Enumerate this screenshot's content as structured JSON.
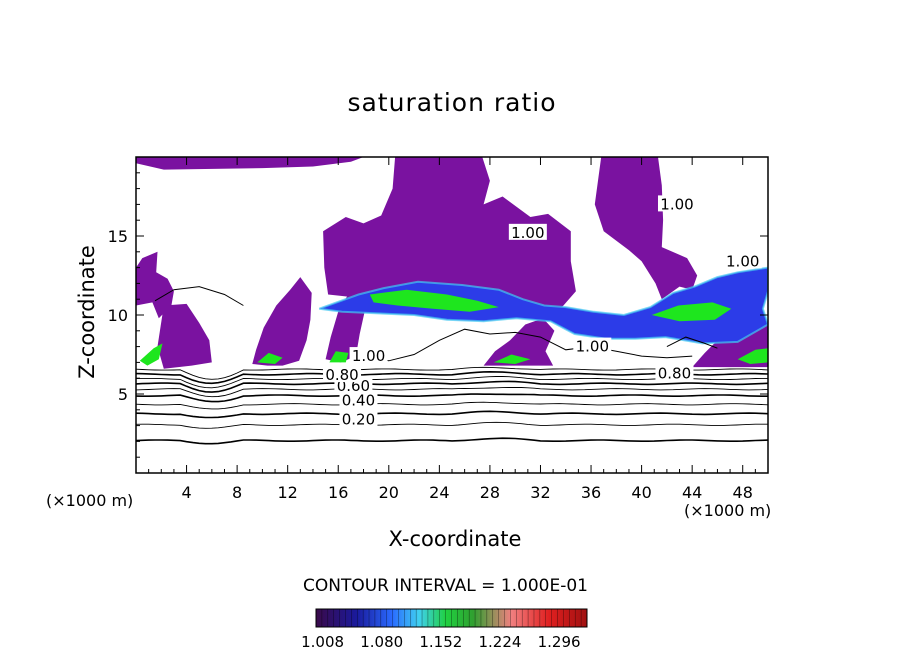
{
  "chart_data": {
    "type": "heatmap",
    "title": "saturation ratio",
    "xlabel": "X-coordinate",
    "ylabel": "Z-coordinate",
    "x_unit_label": "(×1000 m)",
    "xlim": [
      0,
      50
    ],
    "ylim": [
      0,
      20
    ],
    "x_ticks": [
      4,
      8,
      12,
      16,
      20,
      24,
      28,
      32,
      36,
      40,
      44,
      48
    ],
    "y_ticks": [
      5,
      10,
      15
    ],
    "contour_interval_text": "CONTOUR INTERVAL = 1.000E-01",
    "contour_labels": [
      {
        "text": "0.20",
        "x": 17.6,
        "z": 3.4
      },
      {
        "text": "0.40",
        "x": 17.6,
        "z": 4.6
      },
      {
        "text": "0.60",
        "x": 17.2,
        "z": 5.5
      },
      {
        "text": "0.80",
        "x": 16.3,
        "z": 6.2
      },
      {
        "text": "0.80",
        "x": 42.6,
        "z": 6.3
      },
      {
        "text": "1.00",
        "x": 18.4,
        "z": 7.4
      },
      {
        "text": "1.00",
        "x": 36.1,
        "z": 8.0
      },
      {
        "text": "1.00",
        "x": 31.0,
        "z": 15.2
      },
      {
        "text": "1.00",
        "x": 42.8,
        "z": 17.0
      },
      {
        "text": "1.00",
        "x": 48.0,
        "z": 13.4
      }
    ],
    "colorbar": {
      "ticks": [
        "1.008",
        "1.080",
        "1.152",
        "1.224",
        "1.296"
      ],
      "range": [
        1.0,
        1.33
      ]
    },
    "colors": {
      "supersaturated_base": "#7a12a0",
      "blue": "#2c3ce8",
      "cyan": "#42c8f2",
      "green": "#1ee61e",
      "contour_line": "#000000"
    },
    "regions": [
      {
        "name": "upper-left-lobe",
        "level": 1.0,
        "pts": [
          [
            0,
            20
          ],
          [
            0,
            19.6
          ],
          [
            2.2,
            19.2
          ],
          [
            10,
            19.3
          ],
          [
            14,
            19.4
          ],
          [
            17,
            19.7
          ],
          [
            18,
            20
          ]
        ]
      },
      {
        "name": "central-column",
        "level": 1.0,
        "pts": [
          [
            20.5,
            20
          ],
          [
            20.3,
            18
          ],
          [
            19.4,
            16.3
          ],
          [
            18,
            15.8
          ],
          [
            16.6,
            16.2
          ],
          [
            14.8,
            15.3
          ],
          [
            14.9,
            13
          ],
          [
            15.2,
            11.3
          ],
          [
            17.5,
            11.1
          ],
          [
            20,
            11.5
          ],
          [
            24,
            11.4
          ],
          [
            28,
            11.2
          ],
          [
            32,
            10.3
          ],
          [
            33.7,
            10.5
          ],
          [
            34.8,
            11.5
          ],
          [
            34.4,
            13.4
          ],
          [
            34.4,
            15.3
          ],
          [
            32.6,
            16.4
          ],
          [
            31.2,
            16.2
          ],
          [
            29,
            17.5
          ],
          [
            27.5,
            17
          ],
          [
            28,
            18.5
          ],
          [
            27.4,
            20
          ]
        ]
      },
      {
        "name": "right-lobe",
        "level": 1.0,
        "pts": [
          [
            36.8,
            20
          ],
          [
            36.3,
            17
          ],
          [
            37,
            15.3
          ],
          [
            39,
            14.1
          ],
          [
            40,
            13.4
          ],
          [
            41.1,
            12
          ],
          [
            41.6,
            11
          ],
          [
            43,
            11.8
          ],
          [
            44,
            11.6
          ],
          [
            44.4,
            12.5
          ],
          [
            43.6,
            13.6
          ],
          [
            41.6,
            14.3
          ],
          [
            41.7,
            16
          ],
          [
            41.6,
            18.2
          ],
          [
            41.3,
            20
          ]
        ]
      },
      {
        "name": "left-cloud",
        "level": 1.02,
        "pts": [
          [
            0,
            13
          ],
          [
            0.5,
            13.6
          ],
          [
            1.7,
            14
          ],
          [
            1.6,
            12.7
          ],
          [
            2.5,
            12.3
          ],
          [
            3,
            11.5
          ],
          [
            2.8,
            10.6
          ],
          [
            1.8,
            9.8
          ],
          [
            1.3,
            10.8
          ],
          [
            0,
            10.6
          ]
        ]
      },
      {
        "name": "cloud-mid-left",
        "level": 1.0,
        "pts": [
          [
            2.2,
            10.6
          ],
          [
            4,
            10.7
          ],
          [
            5,
            9.5
          ],
          [
            5.8,
            8.4
          ],
          [
            6,
            7
          ],
          [
            4.4,
            6.8
          ],
          [
            2.2,
            6.6
          ],
          [
            1.7,
            8
          ]
        ]
      },
      {
        "name": "cloud-12km",
        "level": 1.0,
        "pts": [
          [
            9.2,
            6.9
          ],
          [
            9.5,
            7.8
          ],
          [
            10.1,
            9.2
          ],
          [
            11.1,
            10.6
          ],
          [
            12.2,
            11.6
          ],
          [
            13,
            12.4
          ],
          [
            13.9,
            11.4
          ],
          [
            13.8,
            9.7
          ],
          [
            13.5,
            8.4
          ],
          [
            12.9,
            7.1
          ],
          [
            11.6,
            6.8
          ],
          [
            10.4,
            6.8
          ]
        ]
      },
      {
        "name": "cloud-16km",
        "level": 1.0,
        "pts": [
          [
            15,
            7.2
          ],
          [
            15.4,
            8.6
          ],
          [
            16,
            10.2
          ],
          [
            17,
            11.6
          ],
          [
            18.2,
            10.6
          ],
          [
            17.7,
            8.8
          ],
          [
            17.4,
            7.4
          ],
          [
            16.2,
            7
          ]
        ]
      },
      {
        "name": "cloud-32km",
        "level": 1.0,
        "pts": [
          [
            27.5,
            6.8
          ],
          [
            28.4,
            7.7
          ],
          [
            29.6,
            8.4
          ],
          [
            30.8,
            9.4
          ],
          [
            32.2,
            9.8
          ],
          [
            33.1,
            9
          ],
          [
            32.4,
            7.7
          ],
          [
            33,
            6.8
          ]
        ]
      },
      {
        "name": "right-side-band",
        "level": 1.0,
        "pts": [
          [
            44,
            6.7
          ],
          [
            45,
            7.6
          ],
          [
            46.5,
            8.8
          ],
          [
            48.5,
            9.4
          ],
          [
            50,
            9.6
          ],
          [
            50,
            6.7
          ]
        ]
      },
      {
        "name": "main-band",
        "level": 1.08,
        "pts": [
          [
            14.5,
            10.4
          ],
          [
            17.6,
            11.3
          ],
          [
            19.6,
            11.7
          ],
          [
            22.3,
            12.1
          ],
          [
            25.8,
            11.9
          ],
          [
            28.7,
            11.6
          ],
          [
            30.6,
            11
          ],
          [
            32.3,
            10.6
          ],
          [
            34,
            10.5
          ],
          [
            36.2,
            10.2
          ],
          [
            38.6,
            10
          ],
          [
            40.7,
            10.5
          ],
          [
            42.5,
            11.4
          ],
          [
            44.2,
            11.8
          ],
          [
            46,
            12.4
          ],
          [
            47.6,
            12.7
          ],
          [
            50,
            13
          ],
          [
            50,
            11.5
          ],
          [
            49.6,
            10.4
          ],
          [
            50,
            9.4
          ],
          [
            47.6,
            8.3
          ],
          [
            44.8,
            8.2
          ],
          [
            41.9,
            8.6
          ],
          [
            39.5,
            8.5
          ],
          [
            37.2,
            8.5
          ],
          [
            34.7,
            8.8
          ],
          [
            32.8,
            9.6
          ],
          [
            30.1,
            9.8
          ],
          [
            27.5,
            9.6
          ],
          [
            24.6,
            9.7
          ],
          [
            22,
            10
          ],
          [
            19.2,
            10.1
          ],
          [
            16.3,
            10.2
          ]
        ]
      },
      {
        "name": "band-core",
        "level": 1.14,
        "pts": [
          [
            18.5,
            11.3
          ],
          [
            21.4,
            11.6
          ],
          [
            24.6,
            11.3
          ],
          [
            27,
            10.9
          ],
          [
            28.7,
            10.5
          ],
          [
            26.4,
            10.2
          ],
          [
            23.5,
            10.4
          ],
          [
            20.7,
            10.6
          ],
          [
            18.8,
            10.8
          ]
        ]
      },
      {
        "name": "band-core-right",
        "level": 1.13,
        "pts": [
          [
            40.8,
            10
          ],
          [
            42.9,
            10.6
          ],
          [
            45.6,
            10.8
          ],
          [
            47.1,
            10.4
          ],
          [
            45.8,
            9.7
          ],
          [
            43,
            9.6
          ]
        ]
      },
      {
        "name": "left-green-pocket",
        "level": 1.14,
        "pts": [
          [
            0.3,
            7.1
          ],
          [
            1.4,
            7.9
          ],
          [
            2.1,
            8.2
          ],
          [
            1.8,
            7.2
          ],
          [
            0.9,
            6.8
          ]
        ]
      },
      {
        "name": "low-green-16km",
        "level": 1.13,
        "pts": [
          [
            15.3,
            7
          ],
          [
            15.8,
            7.7
          ],
          [
            16.8,
            7.6
          ],
          [
            16.6,
            7
          ]
        ]
      },
      {
        "name": "low-green-12km",
        "level": 1.12,
        "pts": [
          [
            9.6,
            7
          ],
          [
            10.5,
            7.6
          ],
          [
            11.6,
            7.3
          ],
          [
            11,
            6.9
          ]
        ]
      },
      {
        "name": "right-green-pocket",
        "level": 1.13,
        "pts": [
          [
            47.6,
            7.2
          ],
          [
            49,
            7.8
          ],
          [
            50,
            7.9
          ],
          [
            50,
            7
          ],
          [
            48.6,
            6.9
          ]
        ]
      },
      {
        "name": "band-core-32km",
        "level": 1.12,
        "pts": [
          [
            28.3,
            7
          ],
          [
            29.7,
            7.5
          ],
          [
            31.2,
            7.2
          ],
          [
            30,
            6.9
          ]
        ]
      }
    ]
  }
}
